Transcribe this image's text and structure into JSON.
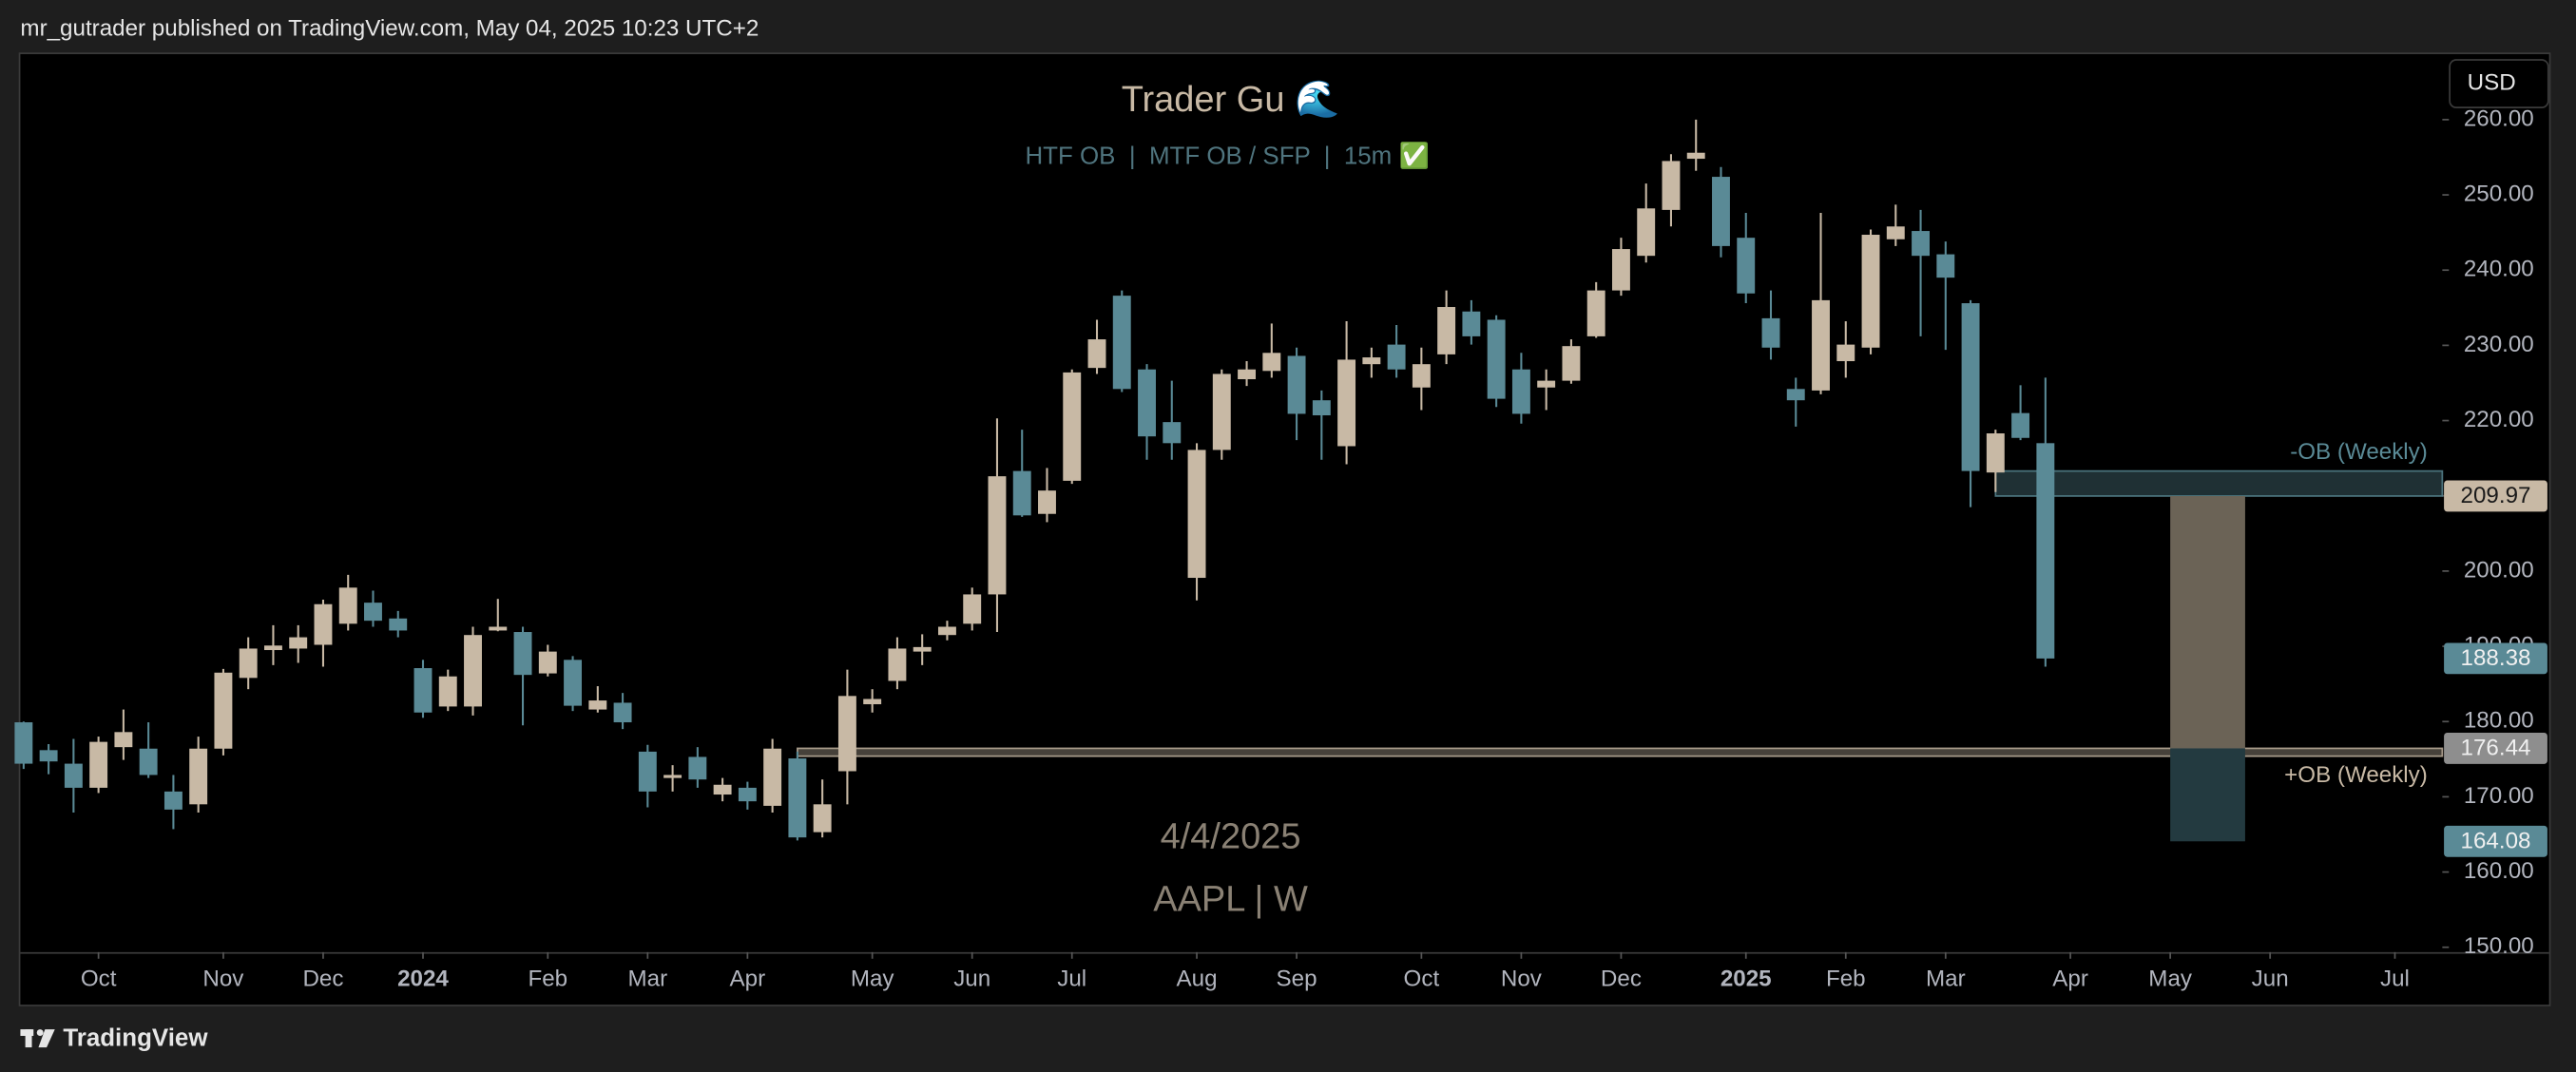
{
  "header": {
    "text": "mr_gutrader published on TradingView.com, May 04, 2025 10:23 UTC+2"
  },
  "footer": {
    "brand": "TradingView"
  },
  "chart_data": {
    "type": "candlestick",
    "title": "Trader Gu 🌊",
    "subtitle": "HTF OB  |  MTF OB / SFP  |  15m ✅",
    "watermark": [
      "4/4/2025",
      "AAPL | W"
    ],
    "currency": "USD",
    "up_color": "#c8b9a5",
    "down_color": "#5a8a96",
    "open": [
      179.9,
      176.2,
      174.4,
      171.2,
      176.6,
      176.4,
      170.7,
      169,
      176.4,
      185.8,
      189.5,
      189.7,
      190.2,
      193,
      195.8,
      193.7,
      187.1,
      182,
      182,
      192.1,
      191.9,
      186.4,
      188.2,
      181.6,
      182.5,
      176,
      172.5,
      175.3,
      170.3,
      171.2,
      168.8,
      175.1,
      165.3,
      173.4,
      182.3,
      185.4,
      189.3,
      191.5,
      193,
      196.9,
      213.3,
      207.6,
      212,
      227,
      236.6,
      226.8,
      219.8,
      199.1,
      216.1,
      225.5,
      226.6,
      228.6,
      222.7,
      216.6,
      227.5,
      230.1,
      224.4,
      228.8,
      234.5,
      233.4,
      226.8,
      224.4,
      225.3,
      231.2,
      237.3,
      241.9,
      248,
      254.8,
      252.4,
      244.3,
      233.6,
      224.2,
      224,
      227.9,
      229.7,
      244.1,
      245.2,
      242.1,
      235.6,
      213.1,
      221,
      217
    ],
    "high": [
      180,
      177,
      177.7,
      178,
      181.6,
      179.9,
      172.9,
      178,
      187,
      191.2,
      192.8,
      192.8,
      196.2,
      199.5,
      197.4,
      194.7,
      188.2,
      186.9,
      192.6,
      196.3,
      192.6,
      190.2,
      188.7,
      184.7,
      183.8,
      176.9,
      174.2,
      176.6,
      172.5,
      172,
      177.7,
      176,
      172.3,
      186.9,
      184.3,
      191.2,
      191.6,
      193.4,
      197.8,
      220.3,
      218.8,
      213.7,
      226.8,
      233.4,
      237.3,
      227.5,
      225.3,
      217,
      226.8,
      227.9,
      232.9,
      229.7,
      224,
      233.2,
      229.7,
      232.7,
      229.7,
      237.3,
      236,
      234,
      229,
      226.8,
      230.8,
      238.4,
      244.3,
      251.5,
      255.4,
      260,
      253.7,
      247.6,
      237.3,
      225.7,
      247.6,
      233.2,
      245.4,
      248.7,
      248,
      243.8,
      236,
      218.8,
      224.7,
      225.7
    ],
    "low": [
      173.7,
      173,
      167.9,
      170.5,
      174.9,
      172.5,
      165.7,
      167.9,
      175.5,
      184.3,
      187.5,
      187.8,
      187.3,
      192.1,
      192.6,
      191.2,
      180.5,
      181.4,
      180.8,
      192,
      179.5,
      186,
      181.4,
      181.2,
      179,
      168.6,
      170.7,
      171.2,
      169.4,
      168.3,
      167.9,
      164.2,
      164.6,
      169,
      181.2,
      184.3,
      187.5,
      190.8,
      192.1,
      191.9,
      207.2,
      206.5,
      211.6,
      226.2,
      223.8,
      214.8,
      214.8,
      196.1,
      214.8,
      224.6,
      225.7,
      217.4,
      214.8,
      214.2,
      225.7,
      225.7,
      221.4,
      227.5,
      230.1,
      221.8,
      219.6,
      221.4,
      224.9,
      231,
      236.6,
      241,
      245.8,
      253.2,
      241.7,
      235.6,
      228.1,
      219.2,
      223.5,
      225.7,
      228.8,
      243.2,
      231.2,
      229.4,
      208.5,
      210.5,
      217.4,
      187.3
    ],
    "close": [
      174.4,
      174.7,
      171.2,
      177.3,
      178.6,
      172.9,
      168.3,
      176.4,
      186.5,
      189.7,
      190.1,
      191.2,
      195.6,
      197.8,
      193.4,
      192.1,
      181.2,
      186,
      191.5,
      192.6,
      186.2,
      189.3,
      182.1,
      182.8,
      179.9,
      170.7,
      172.9,
      172.3,
      171.6,
      169.4,
      176.4,
      164.6,
      169,
      183.4,
      183,
      189.7,
      189.9,
      192.6,
      196.9,
      212.6,
      207.4,
      210.7,
      226.4,
      230.8,
      224.2,
      217.9,
      217,
      216.1,
      226.2,
      226.8,
      229,
      220.9,
      220.7,
      228.1,
      228.4,
      226.8,
      227.5,
      235.1,
      231.2,
      222.9,
      220.9,
      225.3,
      229.9,
      237.3,
      242.8,
      248.2,
      254.5,
      255.6,
      243.2,
      236.9,
      229.7,
      222.7,
      236,
      230.1,
      244.7,
      245.8,
      241.9,
      239,
      213.3,
      218.3,
      217.7,
      188.38
    ],
    "xlim": [
      -0.13,
      96.9
    ],
    "xticks": [
      {
        "value": 3,
        "label": "Oct"
      },
      {
        "value": 8,
        "label": "Nov"
      },
      {
        "value": 12,
        "label": "Dec"
      },
      {
        "value": 16,
        "label": "2024"
      },
      {
        "value": 21,
        "label": "Feb"
      },
      {
        "value": 25,
        "label": "Mar"
      },
      {
        "value": 29,
        "label": "Apr"
      },
      {
        "value": 34,
        "label": "May"
      },
      {
        "value": 38,
        "label": "Jun"
      },
      {
        "value": 42,
        "label": "Jul"
      },
      {
        "value": 47,
        "label": "Aug"
      },
      {
        "value": 51,
        "label": "Sep"
      },
      {
        "value": 56,
        "label": "Oct"
      },
      {
        "value": 60,
        "label": "Nov"
      },
      {
        "value": 64,
        "label": "Dec"
      },
      {
        "value": 69,
        "label": "2025"
      },
      {
        "value": 73,
        "label": "Feb"
      },
      {
        "value": 77,
        "label": "Mar"
      },
      {
        "value": 82,
        "label": "Apr"
      },
      {
        "value": 86,
        "label": "May"
      },
      {
        "value": 90,
        "label": "Jun"
      },
      {
        "value": 95,
        "label": "Jul"
      }
    ],
    "ylim": [
      149.35,
      268.7
    ],
    "yticks": [
      {
        "value": 150,
        "label": "150.00"
      },
      {
        "value": 160,
        "label": "160.00"
      },
      {
        "value": 170,
        "label": "170.00"
      },
      {
        "value": 180,
        "label": "180.00"
      },
      {
        "value": 190,
        "label": "190.00"
      },
      {
        "value": 200,
        "label": "200.00"
      },
      {
        "value": 210,
        "label": "210.00"
      },
      {
        "value": 220,
        "label": "220.00"
      },
      {
        "value": 230,
        "label": "230.00"
      },
      {
        "value": 240,
        "label": "240.00"
      },
      {
        "value": 250,
        "label": "250.00"
      },
      {
        "value": 260,
        "label": "260.00"
      }
    ],
    "zones": [
      {
        "label": "-OB (Weekly)",
        "top": 213.3,
        "bottom": 209.97,
        "start": 79,
        "color": "#5a8a96",
        "label_position": "above"
      },
      {
        "label": "+OB (Weekly)",
        "top": 176.44,
        "bottom": 175.4,
        "start": 31,
        "color": "#c8b9a5",
        "label_position": "below"
      }
    ],
    "position": {
      "start": 86,
      "end": 89,
      "entry": 176.44,
      "target": 209.97,
      "stop": 164.08
    },
    "price_labels": [
      {
        "value": 209.97,
        "color": "#c8b9a5",
        "text_color": "#1a1a1a"
      },
      {
        "value": 188.38,
        "color": "#5a8a96",
        "text_color": "#f0f0f0"
      },
      {
        "value": 176.44,
        "color": "#8e8e8e",
        "text_color": "#f0f0f0"
      },
      {
        "value": 164.08,
        "color": "#5a8a96",
        "text_color": "#f0f0f0"
      }
    ]
  }
}
